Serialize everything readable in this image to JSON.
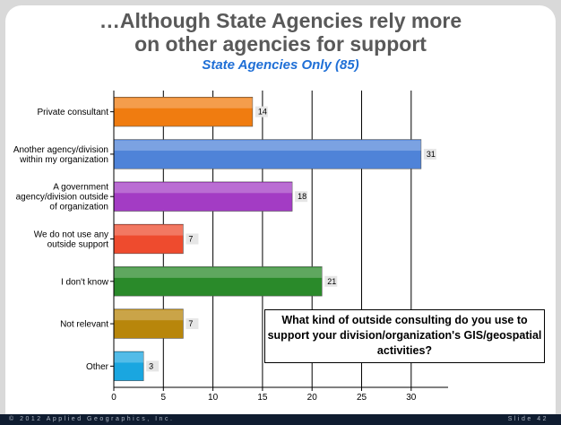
{
  "slide": {
    "title_line1": "…Although State Agencies rely more",
    "title_line2": "on other agencies for support",
    "subtitle": "State Agencies Only (85)",
    "question": "What kind of outside consulting do you use to support your division/organization's GIS/geospatial activities?",
    "footer_left": "© 2012 Applied Geographics, Inc.",
    "footer_right": "Slide 42"
  },
  "chart_data": {
    "type": "bar",
    "orientation": "horizontal",
    "categories": [
      [
        "Private consultant"
      ],
      [
        "Another agency/division",
        "within my organization"
      ],
      [
        "A government",
        "agency/division outside",
        "of organization"
      ],
      [
        "We do not use any",
        "outside support"
      ],
      [
        "I don't know"
      ],
      [
        "Not relevant"
      ],
      [
        "Other"
      ]
    ],
    "values": [
      14,
      31,
      18,
      7,
      21,
      7,
      3
    ],
    "colors": [
      "#f07c10",
      "#4f83d8",
      "#a33cc4",
      "#ee4b2e",
      "#2a8a2a",
      "#b8860b",
      "#1aa6e0"
    ],
    "xlim": [
      0,
      33
    ],
    "xticks": [
      0,
      5,
      10,
      15,
      20,
      25,
      30
    ],
    "grid": true
  }
}
